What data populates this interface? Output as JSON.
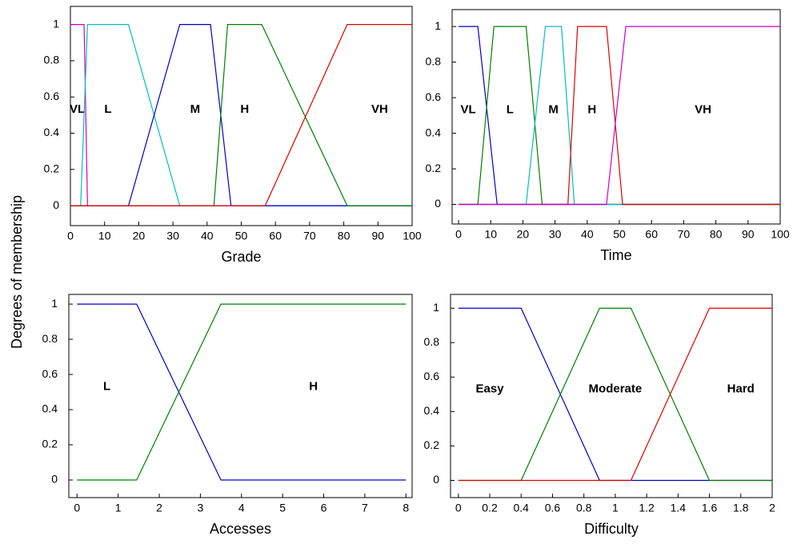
{
  "ylabel": "Degrees of membership",
  "chart_data": [
    {
      "type": "line",
      "xlabel": "Grade",
      "xlim": [
        0,
        100
      ],
      "ylim": [
        -0.11,
        1.1
      ],
      "xticks": [
        0,
        10,
        20,
        30,
        40,
        50,
        60,
        70,
        80,
        90,
        100
      ],
      "yticks": [
        0,
        0.2,
        0.4,
        0.6,
        0.8,
        1
      ],
      "series": [
        {
          "name": "VL",
          "color": "#cc00cc",
          "x": [
            0,
            4,
            5,
            100
          ],
          "values": [
            1,
            1,
            0,
            0
          ]
        },
        {
          "name": "L",
          "color": "#00bfbf",
          "x": [
            0,
            3,
            5,
            17,
            32,
            100
          ],
          "values": [
            0,
            0,
            1,
            1,
            0,
            0
          ]
        },
        {
          "name": "M",
          "color": "#0000cc",
          "x": [
            0,
            17,
            32,
            41,
            47,
            100
          ],
          "values": [
            0,
            0,
            1,
            1,
            0,
            0
          ]
        },
        {
          "name": "H",
          "color": "#008000",
          "x": [
            0,
            42,
            46,
            56,
            81,
            100
          ],
          "values": [
            0,
            0,
            1,
            1,
            0,
            0
          ]
        },
        {
          "name": "VH",
          "color": "#e00000",
          "x": [
            0,
            57,
            81,
            100
          ],
          "values": [
            0,
            0,
            1,
            1
          ]
        }
      ]
    },
    {
      "type": "line",
      "xlabel": "Time",
      "xlim": [
        -2,
        100
      ],
      "ylim": [
        -0.11,
        1.095
      ],
      "xticks": [
        0,
        10,
        20,
        30,
        40,
        50,
        60,
        70,
        80,
        90,
        100
      ],
      "yticks": [
        0,
        0.2,
        0.4,
        0.6,
        0.8,
        1
      ],
      "series": [
        {
          "name": "VL",
          "color": "#0000cc",
          "x": [
            0,
            6,
            12,
            100
          ],
          "values": [
            1,
            1,
            0,
            0
          ]
        },
        {
          "name": "L",
          "color": "#008000",
          "x": [
            0,
            6,
            11,
            21,
            26,
            100
          ],
          "values": [
            0,
            0,
            1,
            1,
            0,
            0
          ]
        },
        {
          "name": "M",
          "color": "#00bfbf",
          "x": [
            0,
            21,
            27,
            32,
            36,
            100
          ],
          "values": [
            0,
            0,
            1,
            1,
            0,
            0
          ]
        },
        {
          "name": "H",
          "color": "#e00000",
          "x": [
            0,
            34,
            37,
            46,
            51,
            100
          ],
          "values": [
            0,
            0,
            1,
            1,
            0,
            0
          ]
        },
        {
          "name": "VH",
          "color": "#cc00cc",
          "x": [
            0,
            46,
            52,
            100
          ],
          "values": [
            0,
            0,
            1,
            1
          ]
        }
      ]
    },
    {
      "type": "line",
      "xlabel": "Accesses",
      "xlim": [
        -0.2,
        8.15
      ],
      "ylim": [
        -0.1,
        1.055
      ],
      "xticks": [
        0,
        1,
        2,
        3,
        4,
        5,
        6,
        7,
        8
      ],
      "yticks": [
        0,
        0.2,
        0.4,
        0.6,
        0.8,
        1
      ],
      "series": [
        {
          "name": "L",
          "color": "#0000cc",
          "x": [
            0,
            1.45,
            3.5,
            8
          ],
          "values": [
            1,
            1,
            0,
            0
          ]
        },
        {
          "name": "H",
          "color": "#008000",
          "x": [
            0,
            1.45,
            3.5,
            8
          ],
          "values": [
            0,
            0,
            1,
            1
          ]
        }
      ]
    },
    {
      "type": "line",
      "xlabel": "Difficulty",
      "xlim": [
        -0.05,
        2
      ],
      "ylim": [
        -0.1,
        1.08
      ],
      "xticks": [
        0,
        0.2,
        0.4,
        0.6,
        0.8,
        1,
        1.2,
        1.4,
        1.6,
        1.8,
        2
      ],
      "yticks": [
        0,
        0.2,
        0.4,
        0.6,
        0.8,
        1
      ],
      "series": [
        {
          "name": "Easy",
          "color": "#0000cc",
          "x": [
            0,
            0.4,
            0.9,
            2
          ],
          "values": [
            1,
            1,
            0,
            0
          ]
        },
        {
          "name": "Moderate",
          "color": "#008000",
          "x": [
            0,
            0.4,
            0.9,
            1.1,
            1.6,
            2
          ],
          "values": [
            0,
            0,
            1,
            1,
            0,
            0
          ]
        },
        {
          "name": "Hard",
          "color": "#e00000",
          "x": [
            0,
            1.1,
            1.6,
            2
          ],
          "values": [
            0,
            0,
            1,
            1
          ]
        }
      ]
    }
  ]
}
